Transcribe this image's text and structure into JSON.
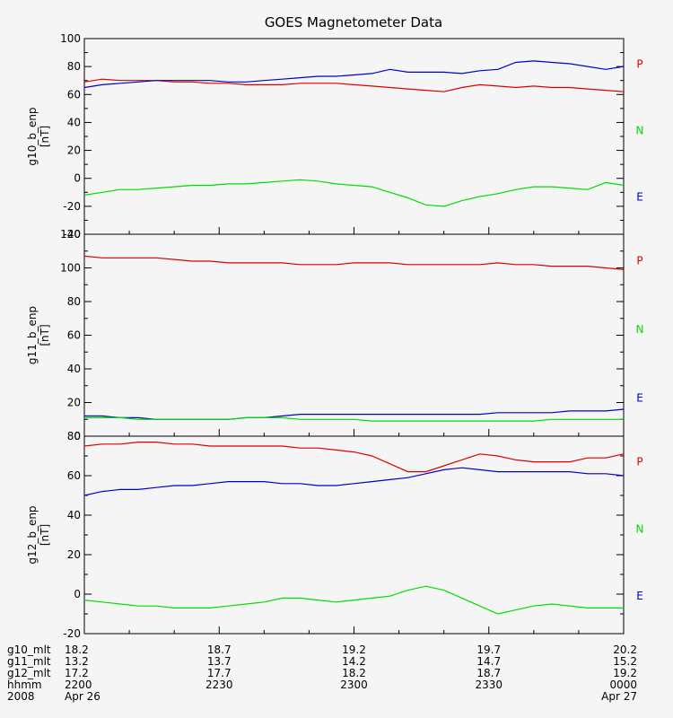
{
  "chart_data": {
    "type": "line",
    "title": "GOES Magnetometer Data",
    "x_ticks": [
      "2200",
      "2230",
      "2300",
      "2330",
      "0000"
    ],
    "time_rows": [
      {
        "label": "g10_mlt",
        "values": [
          "18.2",
          "18.7",
          "19.2",
          "19.7",
          "20.2"
        ]
      },
      {
        "label": "g11_mlt",
        "values": [
          "13.2",
          "13.7",
          "14.2",
          "14.7",
          "15.2"
        ]
      },
      {
        "label": "g12_mlt",
        "values": [
          "17.2",
          "17.7",
          "18.2",
          "18.7",
          "19.2"
        ]
      },
      {
        "label": "hhmm",
        "values": [
          "2200",
          "2230",
          "2300",
          "2330",
          "0000"
        ]
      },
      {
        "label": "2008",
        "values": [
          "Apr 26",
          "",
          "",
          "",
          "Apr 27"
        ]
      }
    ],
    "legend": [
      {
        "name": "P",
        "color": "#dd0000"
      },
      {
        "name": "N",
        "color": "#00dd00"
      },
      {
        "name": "E",
        "color": "#0000cc"
      }
    ],
    "panels": [
      {
        "ylabel": "g10_b_enp",
        "unit": "[nT]",
        "ylim": [
          -40,
          100
        ],
        "yticks": [
          -40,
          -20,
          0,
          20,
          40,
          60,
          80,
          100
        ],
        "series": [
          {
            "legend": "P",
            "color": "#dd0000",
            "x": [
              0,
              4,
              8,
              12,
              16,
              20,
              24,
              28,
              32,
              36,
              40,
              44,
              48,
              52,
              56,
              60,
              64,
              68,
              72,
              76,
              80,
              84,
              88,
              92,
              96,
              100,
              104,
              108,
              112,
              116,
              120
            ],
            "y": [
              69,
              71,
              70,
              70,
              70,
              69,
              69,
              68,
              68,
              67,
              67,
              67,
              68,
              68,
              68,
              67,
              66,
              65,
              64,
              63,
              62,
              65,
              67,
              66,
              65,
              66,
              65,
              65,
              64,
              63,
              62
            ]
          },
          {
            "legend": "E",
            "color": "#0000cc",
            "x": [
              0,
              4,
              8,
              12,
              16,
              20,
              24,
              28,
              32,
              36,
              40,
              44,
              48,
              52,
              56,
              60,
              64,
              68,
              72,
              76,
              80,
              84,
              88,
              92,
              96,
              100,
              104,
              108,
              112,
              116,
              120
            ],
            "y": [
              65,
              67,
              68,
              69,
              70,
              70,
              70,
              70,
              69,
              69,
              70,
              71,
              72,
              73,
              73,
              74,
              75,
              78,
              76,
              76,
              76,
              75,
              77,
              78,
              83,
              84,
              83,
              82,
              80,
              78,
              80
            ]
          },
          {
            "legend": "N",
            "color": "#00dd00",
            "x": [
              0,
              4,
              8,
              12,
              16,
              20,
              24,
              28,
              32,
              36,
              40,
              44,
              48,
              52,
              56,
              60,
              64,
              68,
              72,
              76,
              80,
              84,
              88,
              92,
              96,
              100,
              104,
              108,
              112,
              116,
              120
            ],
            "y": [
              -12,
              -10,
              -8,
              -8,
              -7,
              -6,
              -5,
              -5,
              -4,
              -4,
              -3,
              -2,
              -1,
              -2,
              -4,
              -5,
              -6,
              -10,
              -14,
              -19,
              -20,
              -16,
              -13,
              -11,
              -8,
              -6,
              -6,
              -7,
              -8,
              -3,
              -5
            ]
          }
        ]
      },
      {
        "ylabel": "g11_b_enp",
        "unit": "[nT]",
        "ylim": [
          0,
          120
        ],
        "yticks": [
          0,
          20,
          40,
          60,
          80,
          100,
          120
        ],
        "series": [
          {
            "legend": "P",
            "color": "#dd0000",
            "x": [
              0,
              4,
              8,
              12,
              16,
              20,
              24,
              28,
              32,
              36,
              40,
              44,
              48,
              52,
              56,
              60,
              64,
              68,
              72,
              76,
              80,
              84,
              88,
              92,
              96,
              100,
              104,
              108,
              112,
              116,
              120
            ],
            "y": [
              107,
              106,
              106,
              106,
              106,
              105,
              104,
              104,
              103,
              103,
              103,
              103,
              102,
              102,
              102,
              103,
              103,
              103,
              102,
              102,
              102,
              102,
              102,
              103,
              102,
              102,
              101,
              101,
              101,
              100,
              99
            ]
          },
          {
            "legend": "E",
            "color": "#0000cc",
            "x": [
              0,
              4,
              8,
              12,
              16,
              20,
              24,
              28,
              32,
              36,
              40,
              44,
              48,
              52,
              56,
              60,
              64,
              68,
              72,
              76,
              80,
              84,
              88,
              92,
              96,
              100,
              104,
              108,
              112,
              116,
              120
            ],
            "y": [
              12,
              12,
              11,
              11,
              10,
              10,
              10,
              10,
              10,
              11,
              11,
              12,
              13,
              13,
              13,
              13,
              13,
              13,
              13,
              13,
              13,
              13,
              13,
              14,
              14,
              14,
              14,
              15,
              15,
              15,
              16
            ]
          },
          {
            "legend": "N",
            "color": "#00dd00",
            "x": [
              0,
              4,
              8,
              12,
              16,
              20,
              24,
              28,
              32,
              36,
              40,
              44,
              48,
              52,
              56,
              60,
              64,
              68,
              72,
              76,
              80,
              84,
              88,
              92,
              96,
              100,
              104,
              108,
              112,
              116,
              120
            ],
            "y": [
              11,
              11,
              11,
              10,
              10,
              10,
              10,
              10,
              10,
              11,
              11,
              11,
              10,
              10,
              10,
              10,
              9,
              9,
              9,
              9,
              9,
              9,
              9,
              9,
              9,
              9,
              10,
              10,
              10,
              10,
              10
            ]
          }
        ]
      },
      {
        "ylabel": "g12_b_enp",
        "unit": "[nT]",
        "ylim": [
          -20,
          80
        ],
        "yticks": [
          -20,
          0,
          20,
          40,
          60,
          80
        ],
        "series": [
          {
            "legend": "P",
            "color": "#dd0000",
            "x": [
              0,
              4,
              8,
              12,
              16,
              20,
              24,
              28,
              32,
              36,
              40,
              44,
              48,
              52,
              56,
              60,
              64,
              68,
              72,
              76,
              80,
              84,
              88,
              92,
              96,
              100,
              104,
              108,
              112,
              116,
              120
            ],
            "y": [
              75,
              76,
              76,
              77,
              77,
              76,
              76,
              75,
              75,
              75,
              75,
              75,
              74,
              74,
              73,
              72,
              70,
              66,
              62,
              62,
              65,
              68,
              71,
              70,
              68,
              67,
              67,
              67,
              69,
              69,
              71
            ]
          },
          {
            "legend": "E",
            "color": "#0000cc",
            "x": [
              0,
              4,
              8,
              12,
              16,
              20,
              24,
              28,
              32,
              36,
              40,
              44,
              48,
              52,
              56,
              60,
              64,
              68,
              72,
              76,
              80,
              84,
              88,
              92,
              96,
              100,
              104,
              108,
              112,
              116,
              120
            ],
            "y": [
              50,
              52,
              53,
              53,
              54,
              55,
              55,
              56,
              57,
              57,
              57,
              56,
              56,
              55,
              55,
              56,
              57,
              58,
              59,
              61,
              63,
              64,
              63,
              62,
              62,
              62,
              62,
              62,
              61,
              61,
              60
            ]
          },
          {
            "legend": "N",
            "color": "#00dd00",
            "x": [
              0,
              4,
              8,
              12,
              16,
              20,
              24,
              28,
              32,
              36,
              40,
              44,
              48,
              52,
              56,
              60,
              64,
              68,
              72,
              76,
              80,
              84,
              88,
              92,
              96,
              100,
              104,
              108,
              112,
              116,
              120
            ],
            "y": [
              -3,
              -4,
              -5,
              -6,
              -6,
              -7,
              -7,
              -7,
              -6,
              -5,
              -4,
              -2,
              -2,
              -3,
              -4,
              -3,
              -2,
              -1,
              2,
              4,
              2,
              -2,
              -6,
              -10,
              -8,
              -6,
              -5,
              -6,
              -7,
              -7,
              -7
            ]
          }
        ]
      }
    ]
  }
}
